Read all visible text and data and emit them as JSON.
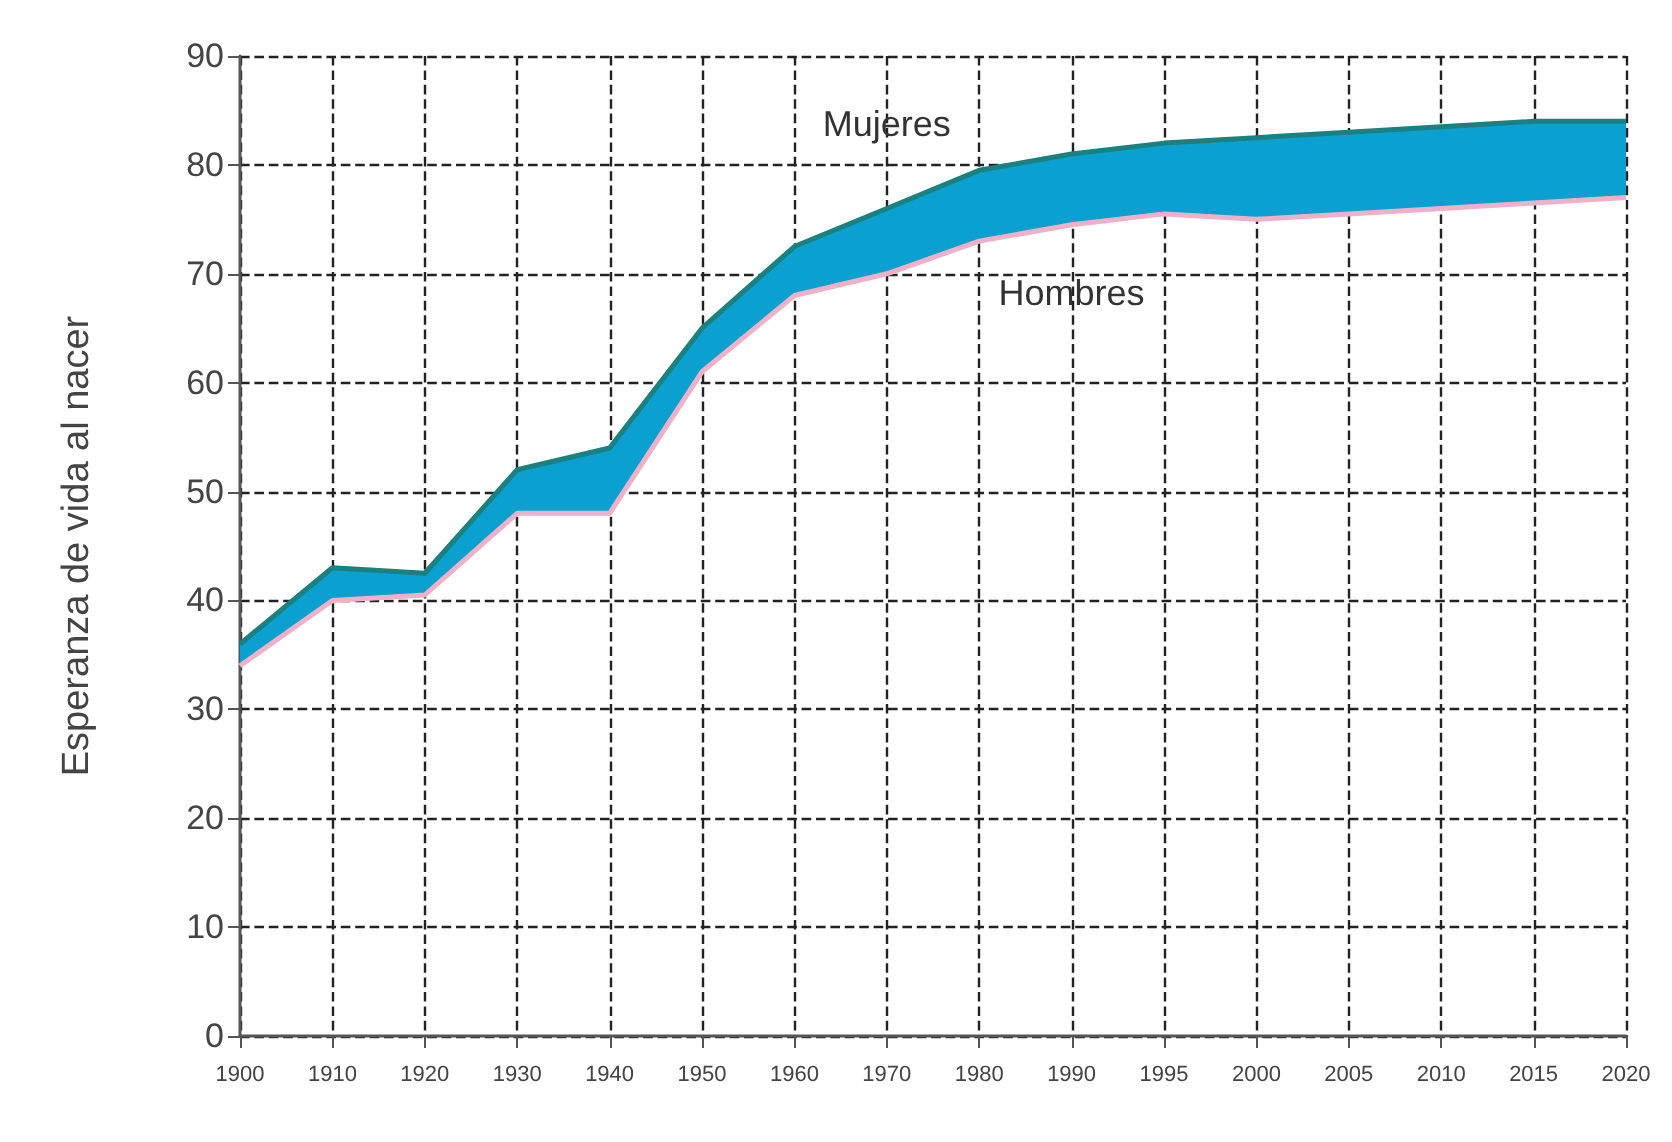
{
  "chart_data": {
    "type": "line",
    "ylabel": "Esperanza de vida al nacer",
    "categories": [
      "1900",
      "1910",
      "1920",
      "1930",
      "1940",
      "1950",
      "1960",
      "1970",
      "1980",
      "1990",
      "1995",
      "2000",
      "2005",
      "2010",
      "2015",
      "2020"
    ],
    "series": [
      {
        "name": "Hombres",
        "color": "#f0b0c8",
        "values": [
          34,
          40,
          40.5,
          48,
          48,
          61,
          68,
          70,
          73,
          74.5,
          75.5,
          75,
          75.5,
          76,
          76.5,
          77
        ]
      },
      {
        "name": "Mujeres",
        "type": "area",
        "color": "#0aa0d0",
        "values": [
          36,
          43,
          42.5,
          52,
          54,
          65,
          72.5,
          76,
          79.5,
          81,
          82,
          82.5,
          83,
          83.5,
          84,
          84
        ]
      }
    ],
    "ylim": [
      0,
      90
    ],
    "yticks": [
      0,
      10,
      20,
      30,
      40,
      50,
      60,
      70,
      80,
      90
    ],
    "grid": true,
    "legend": false,
    "marker": "none",
    "line_style": "solid"
  }
}
